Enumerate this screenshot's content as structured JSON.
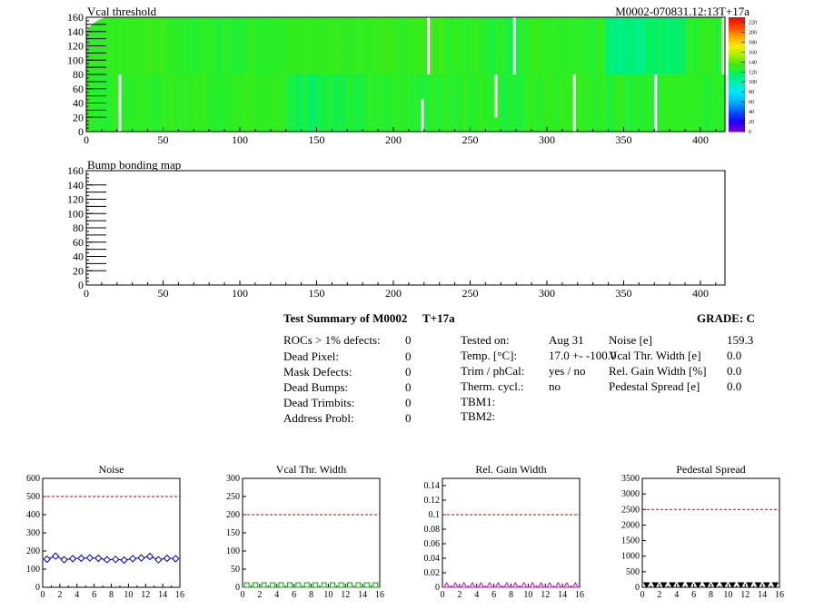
{
  "header": {
    "module_id": "M0002-070831.12:13T+17a"
  },
  "chart_data": [
    {
      "type": "heatmap",
      "title": "Vcal threshold",
      "xlim": [
        0,
        416
      ],
      "ylim": [
        0,
        160
      ],
      "x_ticks": [
        0,
        50,
        100,
        150,
        200,
        250,
        300,
        350,
        400
      ],
      "y_ticks": [
        0,
        20,
        40,
        60,
        80,
        100,
        120,
        140,
        160
      ],
      "colorbar_ticks": [
        0,
        20,
        40,
        60,
        80,
        100,
        120,
        140,
        160,
        180,
        200,
        220
      ],
      "values_description": "typical 110-145 per pixel; narrow columns of zero (dead/white)",
      "roc_mean": [
        128,
        131,
        126,
        125,
        127,
        129,
        130,
        130,
        132,
        128,
        124,
        128,
        126,
        110,
        116,
        126,
        128,
        127,
        130,
        128,
        129,
        118,
        121,
        126,
        126,
        127,
        124,
        128,
        128,
        126,
        128,
        126
      ]
    },
    {
      "type": "heatmap",
      "title": "Bump bonding map",
      "xlim": [
        0,
        416
      ],
      "ylim": [
        0,
        160
      ],
      "x_ticks": [
        0,
        50,
        100,
        150,
        200,
        250,
        300,
        350,
        400
      ],
      "y_ticks": [
        0,
        20,
        40,
        60,
        80,
        100,
        120,
        140,
        160
      ]
    },
    {
      "type": "scatter",
      "title": "Noise",
      "x": [
        0,
        1,
        2,
        3,
        4,
        5,
        6,
        7,
        8,
        9,
        10,
        11,
        12,
        13,
        14,
        15
      ],
      "y": [
        155,
        172,
        152,
        158,
        160,
        162,
        160,
        152,
        154,
        150,
        158,
        162,
        170,
        152,
        160,
        158
      ],
      "threshold": 500,
      "xlim": [
        0,
        16
      ],
      "ylim": [
        0,
        600
      ],
      "y_ticks": [
        0,
        100,
        200,
        300,
        400,
        500,
        600
      ],
      "x_ticks": [
        0,
        2,
        4,
        6,
        8,
        10,
        12,
        14,
        16
      ],
      "color": "#0000cc",
      "marker": "diamond"
    },
    {
      "type": "scatter",
      "title": "Vcal Thr. Width",
      "x": [
        0,
        1,
        2,
        3,
        4,
        5,
        6,
        7,
        8,
        9,
        10,
        11,
        12,
        13,
        14,
        15
      ],
      "y": [
        0,
        0,
        0,
        0,
        0,
        0,
        0,
        0,
        0,
        0,
        0,
        0,
        0,
        0,
        0,
        0
      ],
      "threshold": 200,
      "xlim": [
        0,
        16
      ],
      "ylim": [
        0,
        300
      ],
      "y_ticks": [
        0,
        50,
        100,
        150,
        200,
        250,
        300
      ],
      "x_ticks": [
        0,
        2,
        4,
        6,
        8,
        10,
        12,
        14,
        16
      ],
      "color": "#00aa00",
      "marker": "square"
    },
    {
      "type": "scatter",
      "title": "Rel. Gain Width",
      "x": [
        0,
        1,
        2,
        3,
        4,
        5,
        6,
        7,
        8,
        9,
        10,
        11,
        12,
        13,
        14,
        15
      ],
      "y": [
        0,
        0,
        0,
        0,
        0,
        0,
        0,
        0,
        0,
        0,
        0,
        0,
        0,
        0,
        0,
        0
      ],
      "threshold": 0.1,
      "xlim": [
        0,
        16
      ],
      "ylim": [
        0,
        0.15
      ],
      "y_ticks": [
        0,
        0.02,
        0.04,
        0.06,
        0.08,
        0.1,
        0.12,
        0.14
      ],
      "x_ticks": [
        0,
        2,
        4,
        6,
        8,
        10,
        12,
        14,
        16
      ],
      "color": "#cc00cc",
      "marker": "triangle-up"
    },
    {
      "type": "scatter",
      "title": "Pedestal Spread",
      "x": [
        0,
        1,
        2,
        3,
        4,
        5,
        6,
        7,
        8,
        9,
        10,
        11,
        12,
        13,
        14,
        15
      ],
      "y": [
        0,
        0,
        0,
        0,
        0,
        0,
        0,
        0,
        0,
        0,
        0,
        0,
        0,
        0,
        0,
        0
      ],
      "threshold": 2500,
      "xlim": [
        0,
        16
      ],
      "ylim": [
        0,
        3500
      ],
      "y_ticks": [
        0,
        500,
        1000,
        1500,
        2000,
        2500,
        3000,
        3500
      ],
      "x_ticks": [
        0,
        2,
        4,
        6,
        8,
        10,
        12,
        14,
        16
      ],
      "color": "#000000",
      "marker": "triangle-down"
    }
  ],
  "summary": {
    "title": "Test Summary of M0002",
    "tag": "T+17a",
    "grade": "GRADE:  C",
    "defects": [
      {
        "label": "ROCs > 1% defects:",
        "value": "0"
      },
      {
        "label": "Dead Pixel:",
        "value": "0"
      },
      {
        "label": "Mask Defects:",
        "value": "0"
      },
      {
        "label": "Dead Bumps:",
        "value": "0"
      },
      {
        "label": "Dead Trimbits:",
        "value": "0"
      },
      {
        "label": "Address Probl:",
        "value": "0"
      }
    ],
    "conditions": [
      {
        "label": "Tested on:",
        "value": "Aug 31"
      },
      {
        "label": "Temp. [°C]:",
        "value": "17.0 +- -100.0"
      },
      {
        "label": "Trim / phCal:",
        "value": "yes / no"
      },
      {
        "label": "Therm. cycl.:",
        "value": "no"
      },
      {
        "label": "TBM1:",
        "value": ""
      },
      {
        "label": "TBM2:",
        "value": ""
      }
    ],
    "params": [
      {
        "label": "Noise [e]",
        "value": "159.3"
      },
      {
        "label": "Vcal Thr. Width [e]",
        "value": "0.0"
      },
      {
        "label": "Rel. Gain Width [%]",
        "value": "0.0"
      },
      {
        "label": "Pedestal Spread [e]",
        "value": "0.0"
      }
    ]
  }
}
